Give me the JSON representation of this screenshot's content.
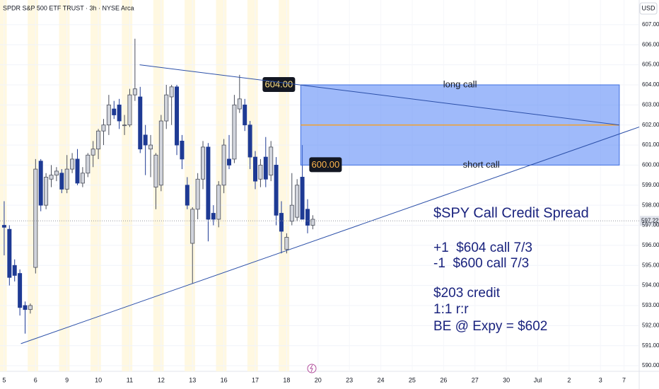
{
  "chart_data": {
    "type": "candlestick",
    "title": "SPDR S&P 500 ETF TRUST · 3h · NYSE Arca",
    "currency": "USD",
    "xlim": [
      -0.8,
      121.4
    ],
    "xticks": [
      {
        "value": 0,
        "label": "5"
      },
      {
        "value": 6,
        "label": "6"
      },
      {
        "value": 12,
        "label": "9"
      },
      {
        "value": 18,
        "label": "10"
      },
      {
        "value": 24,
        "label": "11"
      },
      {
        "value": 30,
        "label": "12"
      },
      {
        "value": 36,
        "label": "13"
      },
      {
        "value": 42,
        "label": "16"
      },
      {
        "value": 48,
        "label": "17"
      },
      {
        "value": 54,
        "label": "18"
      },
      {
        "value": 60,
        "label": "20"
      },
      {
        "value": 66,
        "label": "23"
      },
      {
        "value": 72,
        "label": "24"
      },
      {
        "value": 78,
        "label": "25"
      },
      {
        "value": 84,
        "label": "26"
      },
      {
        "value": 90,
        "label": "27"
      },
      {
        "value": 96,
        "label": "30"
      },
      {
        "value": 102,
        "label": "Jul"
      },
      {
        "value": 108,
        "label": "2"
      },
      {
        "value": 114,
        "label": "3"
      },
      {
        "value": 118.5,
        "label": "7"
      }
    ],
    "ylim": [
      589.72,
      608.23
    ],
    "yticks": [
      {
        "value": 590,
        "label": "590.00"
      },
      {
        "value": 591,
        "label": "591.00"
      },
      {
        "value": 592,
        "label": "592.00"
      },
      {
        "value": 593,
        "label": "593.00"
      },
      {
        "value": 594,
        "label": "594.00"
      },
      {
        "value": 595,
        "label": "595.00"
      },
      {
        "value": 596,
        "label": "596.00"
      },
      {
        "value": 597,
        "label": "597.00"
      },
      {
        "value": 598,
        "label": "598.00"
      },
      {
        "value": 599,
        "label": "599.00"
      },
      {
        "value": 600,
        "label": "600.00"
      },
      {
        "value": 601,
        "label": "601.00"
      },
      {
        "value": 602,
        "label": "602.00"
      },
      {
        "value": 603,
        "label": "603.00"
      },
      {
        "value": 604,
        "label": "604.00"
      },
      {
        "value": 605,
        "label": "605.00"
      },
      {
        "value": 606,
        "label": "606.00"
      },
      {
        "value": 607,
        "label": "607.00"
      }
    ],
    "grid": true,
    "up_color": "#d1d4dc",
    "down_color": "#1e3a94",
    "open": [
      597.0,
      596.8,
      595.0,
      594.6,
      593.0,
      592.8,
      594.9,
      600.2,
      598.0,
      599.3,
      599.5,
      599.6,
      598.8,
      599.8,
      600.3,
      599.1,
      599.6,
      600.5,
      600.8,
      601.7,
      602.0,
      602.8,
      603.0,
      602.0,
      602.0,
      603.5,
      603.4,
      601.5,
      600.8,
      598.9,
      599.0,
      602.2,
      603.4,
      603.9,
      601.2,
      599.0,
      596.1,
      597.8,
      599.3,
      600.9,
      597.6,
      597.3,
      599.0,
      600.3,
      600.3,
      602.8,
      603.0,
      602.0,
      600.4,
      599.3,
      600.4,
      599.5,
      600.0,
      597.6,
      595.8,
      597.2,
      597.4,
      599.4,
      597.8,
      597.0
    ],
    "high": [
      598.2,
      597.0,
      595.3,
      594.8,
      593.2,
      593.1,
      600.3,
      600.3,
      599.6,
      600.0,
      599.9,
      599.8,
      600.5,
      600.6,
      600.8,
      599.9,
      600.6,
      601.2,
      601.8,
      602.3,
      603.5,
      603.2,
      603.3,
      602.5,
      603.8,
      606.3,
      603.9,
      602.0,
      601.5,
      600.6,
      602.5,
      604.0,
      604.0,
      604.0,
      601.5,
      599.4,
      597.9,
      599.6,
      601.2,
      601.1,
      598.0,
      599.2,
      601.3,
      601.5,
      603.5,
      604.5,
      603.3,
      602.2,
      600.7,
      600.3,
      601.4,
      601.2,
      600.4,
      598.2,
      596.6,
      599.6,
      599.3,
      601.0,
      598.3,
      597.5
    ],
    "low": [
      595.5,
      594.0,
      594.2,
      592.5,
      591.6,
      592.6,
      594.6,
      597.7,
      597.8,
      598.9,
      599.2,
      598.6,
      598.6,
      599.6,
      599.0,
      598.9,
      599.4,
      599.9,
      600.3,
      601.0,
      601.5,
      602.3,
      601.8,
      601.5,
      601.9,
      603.2,
      600.6,
      599.5,
      599.4,
      597.8,
      598.7,
      601.8,
      602.0,
      600.5,
      599.8,
      597.8,
      594.1,
      597.3,
      598.8,
      596.2,
      597.0,
      596.9,
      598.6,
      599.8,
      600.1,
      602.6,
      601.7,
      599.8,
      598.8,
      598.9,
      598.9,
      599.2,
      597.0,
      595.6,
      595.6,
      597.0,
      597.2,
      597.3,
      596.6,
      596.8
    ],
    "close": [
      596.9,
      594.4,
      594.5,
      592.9,
      592.8,
      593.0,
      599.8,
      598.0,
      599.4,
      599.5,
      599.7,
      598.8,
      599.8,
      600.3,
      599.1,
      599.6,
      600.5,
      600.8,
      601.7,
      602.0,
      603.0,
      602.5,
      602.2,
      602.0,
      603.5,
      603.8,
      600.8,
      601.0,
      601.0,
      600.5,
      602.2,
      603.5,
      603.9,
      601.0,
      600.3,
      598.0,
      597.8,
      599.3,
      600.9,
      597.3,
      597.3,
      599.0,
      601.0,
      600.0,
      603.0,
      603.3,
      602.0,
      600.4,
      599.2,
      600.0,
      599.3,
      600.9,
      597.5,
      596.7,
      596.4,
      598.0,
      599.0,
      597.3,
      597.0,
      597.3
    ],
    "last_price": 597.22,
    "trendlines": [
      {
        "x": [
          25.9,
          117.6
        ],
        "y": [
          605.0,
          602.0
        ]
      },
      {
        "x": [
          3.2,
          121.4
        ],
        "y": [
          591.1,
          601.9
        ]
      }
    ],
    "zone": {
      "x": [
        56.7,
        117.6
      ],
      "top": 604,
      "top_label": "604.00",
      "bottom": 600,
      "bottom_label": "600.00",
      "mid": 602,
      "top_text": "long call",
      "bottom_text": "short call"
    },
    "annotation": [
      "$SPY Call Credit Spread",
      "+1  $604 call 7/3",
      "-1  $600 call 7/3",
      "$203 credit",
      "1:1 r:r",
      "BE @ Expy = $602"
    ]
  }
}
